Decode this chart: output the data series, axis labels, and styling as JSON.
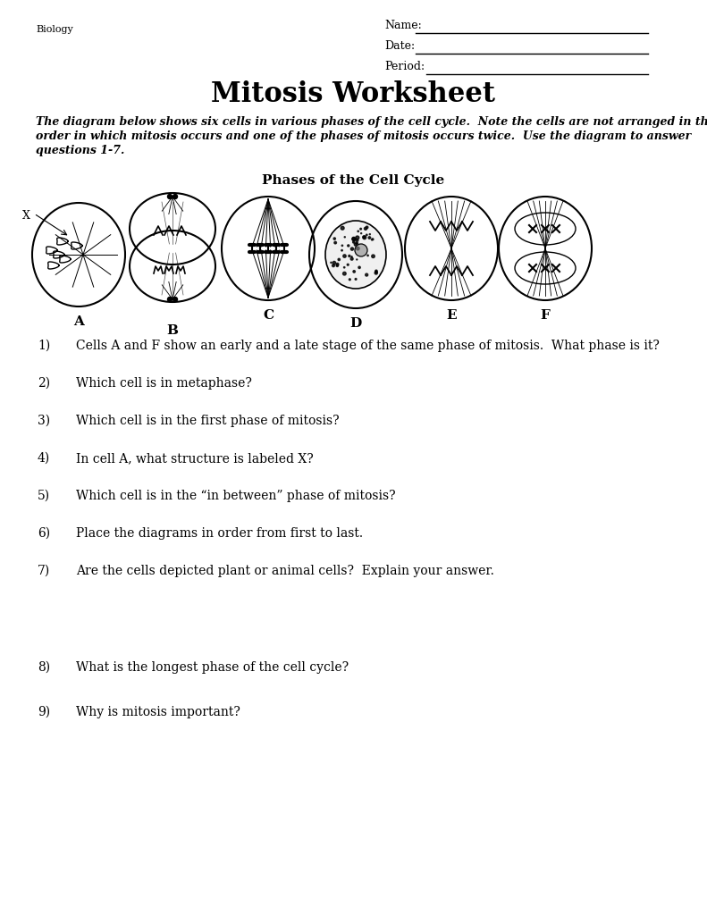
{
  "title": "Mitosis Worksheet",
  "biology_label": "Biology",
  "name_label": "Name:",
  "date_label": "Date:",
  "period_label": "Period:",
  "diagram_title": "Phases of the Cell Cycle",
  "intro_line1": "The diagram below shows six cells in various phases of the cell cycle.  Note the cells are not arranged in the",
  "intro_line2": "order in which mitosis occurs and one of the phases of mitosis occurs twice.  Use the diagram to answer",
  "intro_line3": "questions 1-7.",
  "cell_labels": [
    "A",
    "B",
    "C",
    "D",
    "E",
    "F"
  ],
  "questions": [
    [
      "1)",
      "Cells A and F show an early and a late stage of the same phase of mitosis.  What phase is it?"
    ],
    [
      "2)",
      "Which cell is in metaphase?"
    ],
    [
      "3)",
      "Which cell is in the first phase of mitosis?"
    ],
    [
      "4)",
      "In cell A, what structure is labeled X?"
    ],
    [
      "5)",
      "Which cell is in the “in between” phase of mitosis?"
    ],
    [
      "6)",
      "Place the diagrams in order from first to last."
    ],
    [
      "7)",
      "Are the cells depicted plant or animal cells?  Explain your answer."
    ],
    [
      "8)",
      "What is the longest phase of the cell cycle?"
    ],
    [
      "9)",
      "Why is mitosis important?"
    ]
  ],
  "q_y_positions": [
    380,
    422,
    464,
    506,
    548,
    590,
    632,
    740,
    790
  ],
  "bg_color": "#ffffff",
  "text_color": "#000000"
}
